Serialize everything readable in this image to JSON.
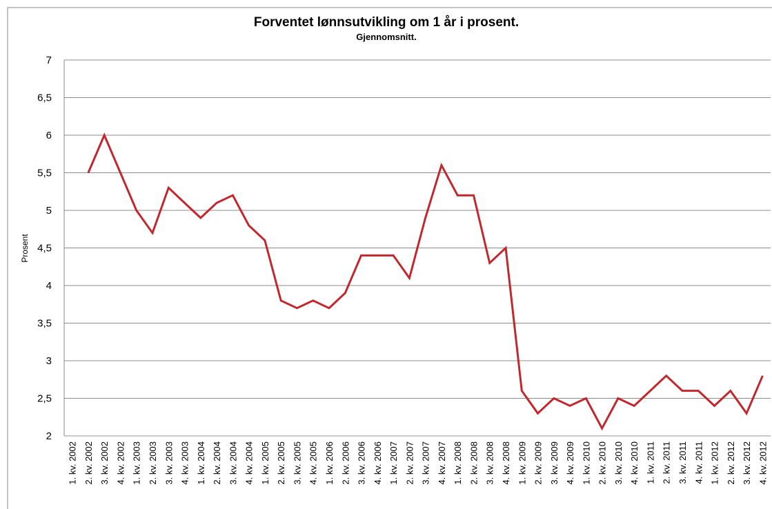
{
  "chart_data": {
    "type": "line",
    "title": "Forventet lønnsutvikling om 1 år i prosent.",
    "subtitle": "Gjennomsnitt.",
    "ylabel": "Prosent",
    "categories": [
      "1. kv. 2002",
      "2. kv. 2002",
      "3. kv. 2002",
      "4. kv. 2002",
      "1. kv. 2003",
      "2. kv. 2003",
      "3. kv. 2003",
      "4. kv. 2003",
      "1. kv. 2004",
      "2. kv. 2004",
      "3. kv. 2004",
      "4. kv. 2004",
      "1. kv. 2005",
      "2. kv. 2005",
      "3. kv. 2005",
      "4. kv. 2005",
      "1. kv. 2006",
      "2. kv. 2006",
      "3. kv. 2006",
      "4. kv. 2006",
      "1. kv. 2007",
      "2. kv. 2007",
      "3. kv. 2007",
      "4. kv. 2007",
      "1. kv. 2008",
      "2. kv. 2008",
      "3. kv. 2008",
      "4. kv. 2008",
      "1. kv. 2009",
      "2. kv. 2009",
      "3. kv. 2009",
      "4. kv. 2009",
      "1. kv. 2010",
      "2. kv. 2010",
      "3. kv. 2010",
      "4. kv. 2010",
      "1. kv. 2011",
      "2. kv. 2011",
      "3. kv. 2011",
      "4. kv. 2011",
      "1. kv. 2012",
      "2. kv. 2012",
      "3. kv. 2012",
      "4. kv. 2012"
    ],
    "values": [
      null,
      5.5,
      6.0,
      5.5,
      5.0,
      4.7,
      5.3,
      5.1,
      4.9,
      5.1,
      5.2,
      4.8,
      4.6,
      3.8,
      3.7,
      3.8,
      3.7,
      3.9,
      4.4,
      4.4,
      4.4,
      4.1,
      4.9,
      5.6,
      5.2,
      5.2,
      4.3,
      4.5,
      2.6,
      2.3,
      2.5,
      2.4,
      2.5,
      2.1,
      2.5,
      2.4,
      2.6,
      2.8,
      2.6,
      2.6,
      2.4,
      2.6,
      2.3,
      2.8
    ],
    "color": "#c0282d",
    "ylim": [
      2,
      7
    ],
    "yticks": [
      2,
      {
        "value": 2.5,
        "label": "2,5"
      },
      3,
      {
        "value": 3.5,
        "label": "3,5"
      },
      4,
      {
        "value": 4.5,
        "label": "4,5"
      },
      5,
      {
        "value": 5.5,
        "label": "5,5"
      },
      6,
      {
        "value": 6.5,
        "label": "6,5"
      },
      7
    ],
    "grid": true
  }
}
